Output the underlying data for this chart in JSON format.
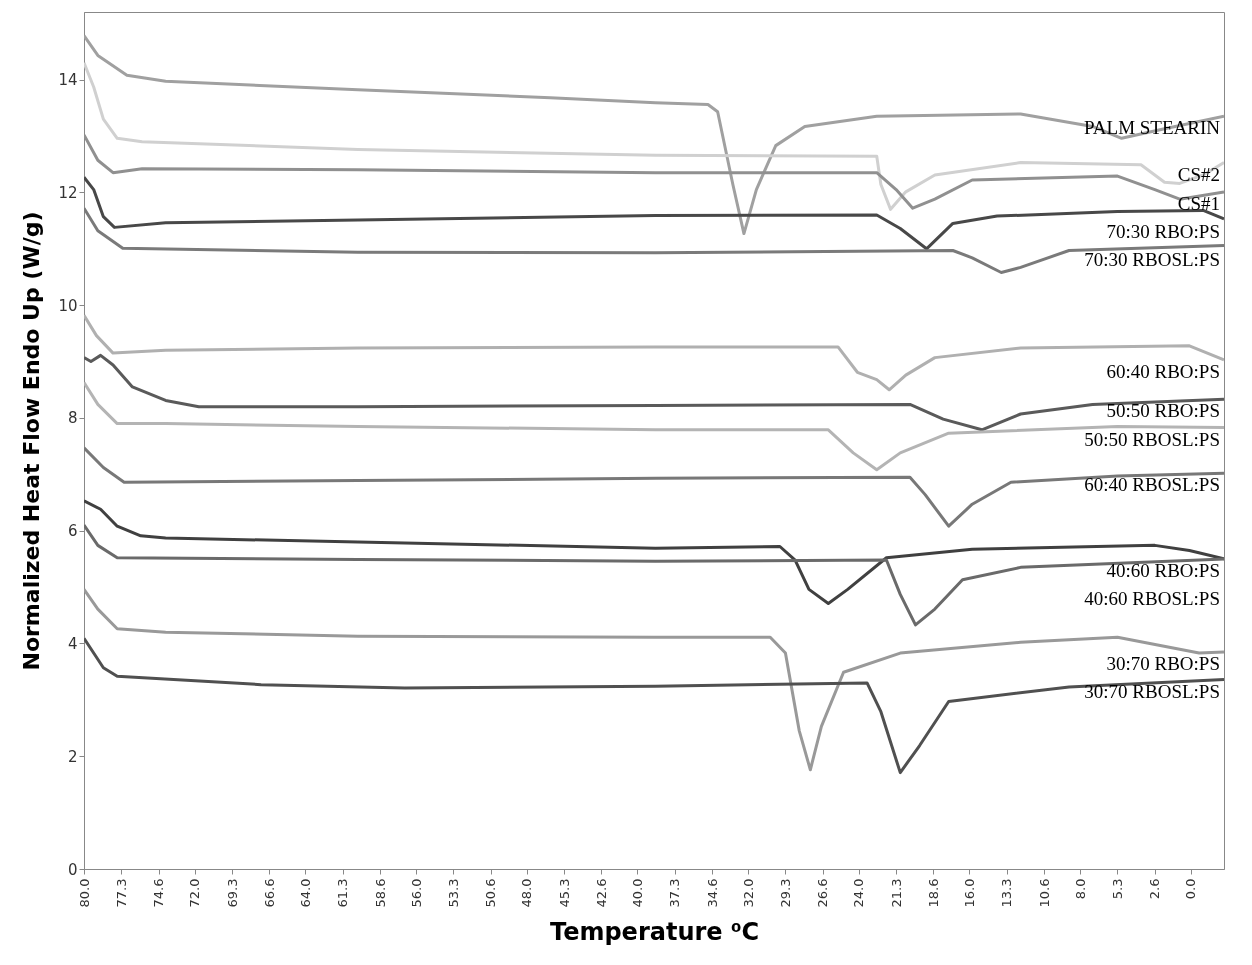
{
  "chart_data": {
    "type": "line",
    "xlabel": "Temperature ⁰C",
    "ylabel": "Normalized Heat Flow Endo Up (W/g)",
    "xlim": [
      80,
      -2.4
    ],
    "ylim": [
      0,
      15.2
    ],
    "yticks": [
      0,
      2,
      4,
      6,
      8,
      10,
      12,
      14
    ],
    "xticks": [
      {
        "value": 80,
        "label": "80.0"
      },
      77.3,
      74.6,
      {
        "value": 72,
        "label": "72.0"
      },
      69.3,
      66.6,
      {
        "value": 64,
        "label": "64.0"
      },
      61.3,
      58.6,
      {
        "value": 56,
        "label": "56.0"
      },
      53.3,
      50.6,
      {
        "value": 48,
        "label": "48.0"
      },
      45.3,
      42.6,
      {
        "value": 40,
        "label": "40.0"
      },
      37.3,
      34.6,
      {
        "value": 32,
        "label": "32.0"
      },
      29.3,
      26.6,
      {
        "value": 24,
        "label": "24.0"
      },
      21.3,
      18.6,
      {
        "value": 16,
        "label": "16.0"
      },
      13.3,
      10.6,
      {
        "value": 8,
        "label": "8.0"
      },
      5.3,
      2.6,
      {
        "value": 0,
        "label": "0.0"
      }
    ],
    "grid": false,
    "legend": false,
    "marker": "none",
    "line_style": "solid",
    "series": [
      {
        "name": "PALM  STEARIN",
        "color": "#a0a0a0",
        "x": [
          80,
          79.0,
          76.9,
          74.1,
          60.2,
          46.3,
          38.7,
          34.9,
          34.2,
          33.1,
          32.3,
          31.4,
          30.0,
          27.9,
          22.7,
          12.3,
          7.1,
          5.0,
          1.9,
          -2.4
        ],
        "values": [
          14.78,
          14.43,
          14.08,
          13.97,
          13.82,
          13.68,
          13.59,
          13.56,
          13.43,
          12.14,
          11.27,
          12.05,
          12.83,
          13.17,
          13.35,
          13.39,
          13.17,
          12.96,
          13.13,
          13.35
        ]
      },
      {
        "name": "CS#2",
        "color": "#d0d0d0",
        "x": [
          80,
          79.3,
          78.6,
          77.6,
          75.8,
          60.2,
          38.7,
          22.7,
          22.4,
          21.7,
          20.6,
          18.5,
          12.3,
          3.6,
          1.9,
          0.8,
          -0.9,
          -2.4
        ],
        "values": [
          14.3,
          13.87,
          13.3,
          12.96,
          12.9,
          12.76,
          12.66,
          12.64,
          12.14,
          11.7,
          12.01,
          12.31,
          12.53,
          12.49,
          12.18,
          12.16,
          12.31,
          12.53
        ]
      },
      {
        "name": "CS#1",
        "color": "#909090",
        "x": [
          80,
          79,
          77.9,
          75.8,
          60.2,
          38.7,
          22.7,
          21.3,
          20.1,
          18.5,
          15.8,
          5.3,
          2.6,
          0.8,
          -2.4
        ],
        "values": [
          13.02,
          12.57,
          12.35,
          12.42,
          12.4,
          12.35,
          12.35,
          12.05,
          11.72,
          11.88,
          12.22,
          12.29,
          12.05,
          11.88,
          12.01
        ]
      },
      {
        "name": "70:30 RBO:PS",
        "color": "#484848",
        "x": [
          80,
          79.3,
          78.6,
          77.8,
          74.1,
          60.2,
          38.7,
          22.7,
          21.0,
          19.1,
          17.2,
          14.0,
          5.3,
          -0.9,
          -2.4
        ],
        "values": [
          12.27,
          12.05,
          11.57,
          11.38,
          11.46,
          11.51,
          11.59,
          11.6,
          11.36,
          11.0,
          11.45,
          11.58,
          11.66,
          11.68,
          11.53
        ]
      },
      {
        "name": "70:30 RBOSL:PS",
        "color": "#7a7a7a",
        "x": [
          80,
          79,
          77.2,
          60.2,
          38.7,
          17.2,
          15.8,
          13.7,
          12.3,
          8.8,
          -2.4
        ],
        "values": [
          11.72,
          11.32,
          11.01,
          10.94,
          10.93,
          10.97,
          10.84,
          10.58,
          10.67,
          10.97,
          11.06
        ]
      },
      {
        "name": "60:40 RBO:PS",
        "color": "#b0b0b0",
        "x": [
          80,
          79.1,
          77.9,
          74.1,
          60.2,
          38.7,
          25.5,
          24.1,
          22.7,
          21.8,
          20.6,
          18.5,
          12.3,
          0.1,
          -2.4
        ],
        "values": [
          9.82,
          9.46,
          9.15,
          9.2,
          9.24,
          9.26,
          9.26,
          8.81,
          8.68,
          8.5,
          8.76,
          9.07,
          9.24,
          9.28,
          9.03
        ]
      },
      {
        "name": "50:50 RBO:PS",
        "color": "#5a5a5a",
        "x": [
          80,
          79.5,
          78.8,
          77.9,
          76.5,
          74.1,
          71.7,
          60.2,
          38.7,
          20.3,
          17.9,
          15.1,
          12.3,
          7.1,
          -2.4
        ],
        "values": [
          9.07,
          9.0,
          9.11,
          8.94,
          8.55,
          8.31,
          8.2,
          8.2,
          8.22,
          8.24,
          7.98,
          7.79,
          8.07,
          8.24,
          8.33
        ]
      },
      {
        "name": "50:50 RBOSL:PS",
        "color": "#b4b4b4",
        "x": [
          80,
          79,
          77.6,
          74.1,
          60.2,
          38.7,
          26.2,
          24.4,
          22.7,
          21.0,
          17.5,
          5.3,
          -2.4
        ],
        "values": [
          8.63,
          8.24,
          7.9,
          7.9,
          7.85,
          7.79,
          7.79,
          7.38,
          7.08,
          7.38,
          7.73,
          7.85,
          7.83
        ]
      },
      {
        "name": "60:40 RBOSL:PS",
        "color": "#787878",
        "x": [
          80,
          78.6,
          77.1,
          60.2,
          38.7,
          20.3,
          19.2,
          17.5,
          15.8,
          13.0,
          5.3,
          -2.4
        ],
        "values": [
          7.47,
          7.12,
          6.86,
          6.89,
          6.93,
          6.95,
          6.64,
          6.08,
          6.47,
          6.86,
          6.97,
          7.02
        ]
      },
      {
        "name": "40:60 RBO:PS",
        "color": "#404040",
        "x": [
          80,
          78.8,
          77.6,
          75.9,
          74.1,
          60.2,
          38.7,
          29.7,
          28.6,
          27.6,
          26.2,
          24.8,
          22.0,
          15.8,
          2.6,
          0.1,
          -2.4
        ],
        "values": [
          6.53,
          6.38,
          6.08,
          5.91,
          5.87,
          5.8,
          5.69,
          5.72,
          5.48,
          4.96,
          4.71,
          4.96,
          5.52,
          5.67,
          5.74,
          5.65,
          5.5
        ]
      },
      {
        "name": "40:60 RBOSL:PS",
        "color": "#6a6a6a",
        "x": [
          80,
          79,
          77.6,
          60.2,
          38.7,
          22.0,
          21.0,
          19.9,
          18.5,
          16.5,
          12.3,
          -2.4
        ],
        "values": [
          6.1,
          5.74,
          5.52,
          5.49,
          5.46,
          5.48,
          4.87,
          4.33,
          4.61,
          5.13,
          5.35,
          5.5
        ]
      },
      {
        "name": "30:70 RBO:PS",
        "color": "#999999",
        "x": [
          80,
          79,
          77.6,
          74.1,
          60.2,
          38.7,
          30.4,
          29.3,
          28.3,
          27.5,
          26.7,
          25.1,
          21.0,
          12.3,
          5.3,
          -0.6,
          -2.4
        ],
        "values": [
          4.96,
          4.61,
          4.26,
          4.2,
          4.13,
          4.11,
          4.11,
          3.83,
          2.45,
          1.76,
          2.53,
          3.49,
          3.83,
          4.02,
          4.11,
          3.83,
          3.85
        ]
      },
      {
        "name": "30:70 RBOSL:PS",
        "color": "#505050",
        "x": [
          80,
          78.6,
          77.6,
          67.2,
          56.8,
          38.7,
          23.4,
          22.4,
          21.0,
          19.6,
          17.5,
          8.8,
          -2.4
        ],
        "values": [
          4.09,
          3.57,
          3.42,
          3.27,
          3.21,
          3.24,
          3.3,
          2.79,
          1.71,
          2.19,
          2.97,
          3.23,
          3.36
        ]
      }
    ]
  }
}
